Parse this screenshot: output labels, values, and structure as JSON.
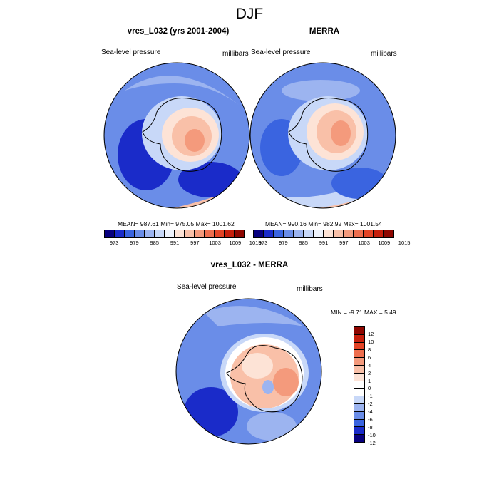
{
  "title": "DJF",
  "panels": [
    {
      "title": "vres_L032 (yrs 2001-2004)",
      "left_label": "Sea-level pressure",
      "right_label": "millibars",
      "stats": "MEAN= 987.61  Min= 975.05  Max= 1001.62"
    },
    {
      "title": "MERRA",
      "left_label": "Sea-level pressure",
      "right_label": "millibars",
      "stats": "MEAN= 990.16  Min= 982.92  Max= 1001.54"
    },
    {
      "title": "vres_L032 - MERRA",
      "left_label": "Sea-level pressure",
      "right_label": "millibars",
      "stats": "MIN =  -9.71 MAX =   5.49"
    }
  ],
  "colorbar_top": {
    "labels": [
      "973",
      "979",
      "985",
      "991",
      "997",
      "1003",
      "1009",
      "1015"
    ],
    "colors": [
      "#08007e",
      "#1a2bc9",
      "#3a64e0",
      "#6a8de8",
      "#9cb4f0",
      "#c8d8f8",
      "#eef3fc",
      "#fde3d6",
      "#f9c0a8",
      "#f49a7c",
      "#ee6e4e",
      "#e34426",
      "#c61f0c",
      "#8e0600"
    ]
  },
  "colorbar_diff": {
    "labels": [
      "12",
      "10",
      "8",
      "6",
      "4",
      "2",
      "1",
      "0",
      "-1",
      "-2",
      "-4",
      "-6",
      "-8",
      "-10",
      "-12"
    ],
    "colors": [
      "#8e0600",
      "#c61f0c",
      "#e34426",
      "#ee6e4e",
      "#f49a7c",
      "#f9c0a8",
      "#fde3d6",
      "#ffffff",
      "#ffffff",
      "#c8d8f8",
      "#9cb4f0",
      "#6a8de8",
      "#3a64e0",
      "#1a2bc9",
      "#08007e"
    ]
  }
}
